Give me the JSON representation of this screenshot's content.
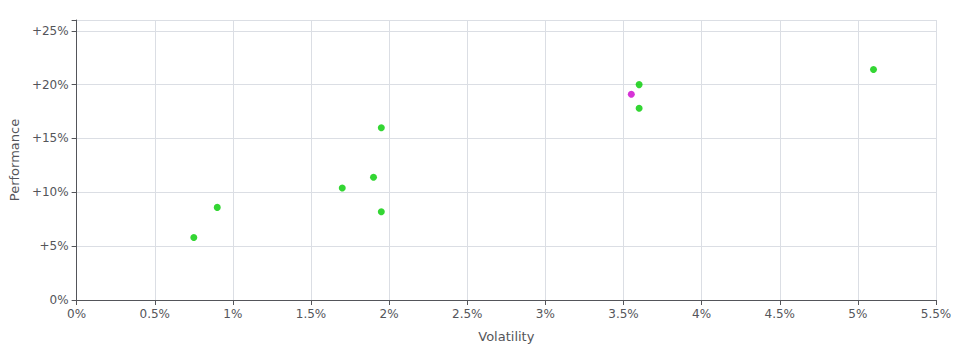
{
  "chart_data": {
    "type": "scatter",
    "xlabel": "Volatility",
    "ylabel": "Performance",
    "xlim": [
      0.0,
      0.055
    ],
    "ylim": [
      0.0,
      0.26
    ],
    "xticks": [
      {
        "value": 0.0,
        "label": "0%"
      },
      {
        "value": 0.005,
        "label": "0.5%"
      },
      {
        "value": 0.01,
        "label": "1%"
      },
      {
        "value": 0.015,
        "label": "1.5%"
      },
      {
        "value": 0.02,
        "label": "2%"
      },
      {
        "value": 0.025,
        "label": "2.5%"
      },
      {
        "value": 0.03,
        "label": "3%"
      },
      {
        "value": 0.035,
        "label": "3.5%"
      },
      {
        "value": 0.04,
        "label": "4%"
      },
      {
        "value": 0.045,
        "label": "4.5%"
      },
      {
        "value": 0.05,
        "label": "5%"
      },
      {
        "value": 0.055,
        "label": "5.5%"
      }
    ],
    "yticks": [
      {
        "value": 0.0,
        "label": "0%"
      },
      {
        "value": 0.05,
        "label": "+5%"
      },
      {
        "value": 0.1,
        "label": "+10%"
      },
      {
        "value": 0.15,
        "label": "+15%"
      },
      {
        "value": 0.2,
        "label": "+20%"
      },
      {
        "value": 0.25,
        "label": "+25%"
      }
    ],
    "grid": true,
    "series": [
      {
        "color": "#00cc00",
        "x": [
          0.009,
          0.0075,
          0.017,
          0.019,
          0.0195,
          0.0195,
          0.036,
          0.036,
          0.051
        ],
        "values": [
          0.086,
          0.058,
          0.104,
          0.114,
          0.16,
          0.082,
          0.2,
          0.178,
          0.214
        ]
      },
      {
        "color": "#cc00cc",
        "x": [
          0.0355
        ],
        "values": [
          0.191
        ]
      }
    ]
  }
}
